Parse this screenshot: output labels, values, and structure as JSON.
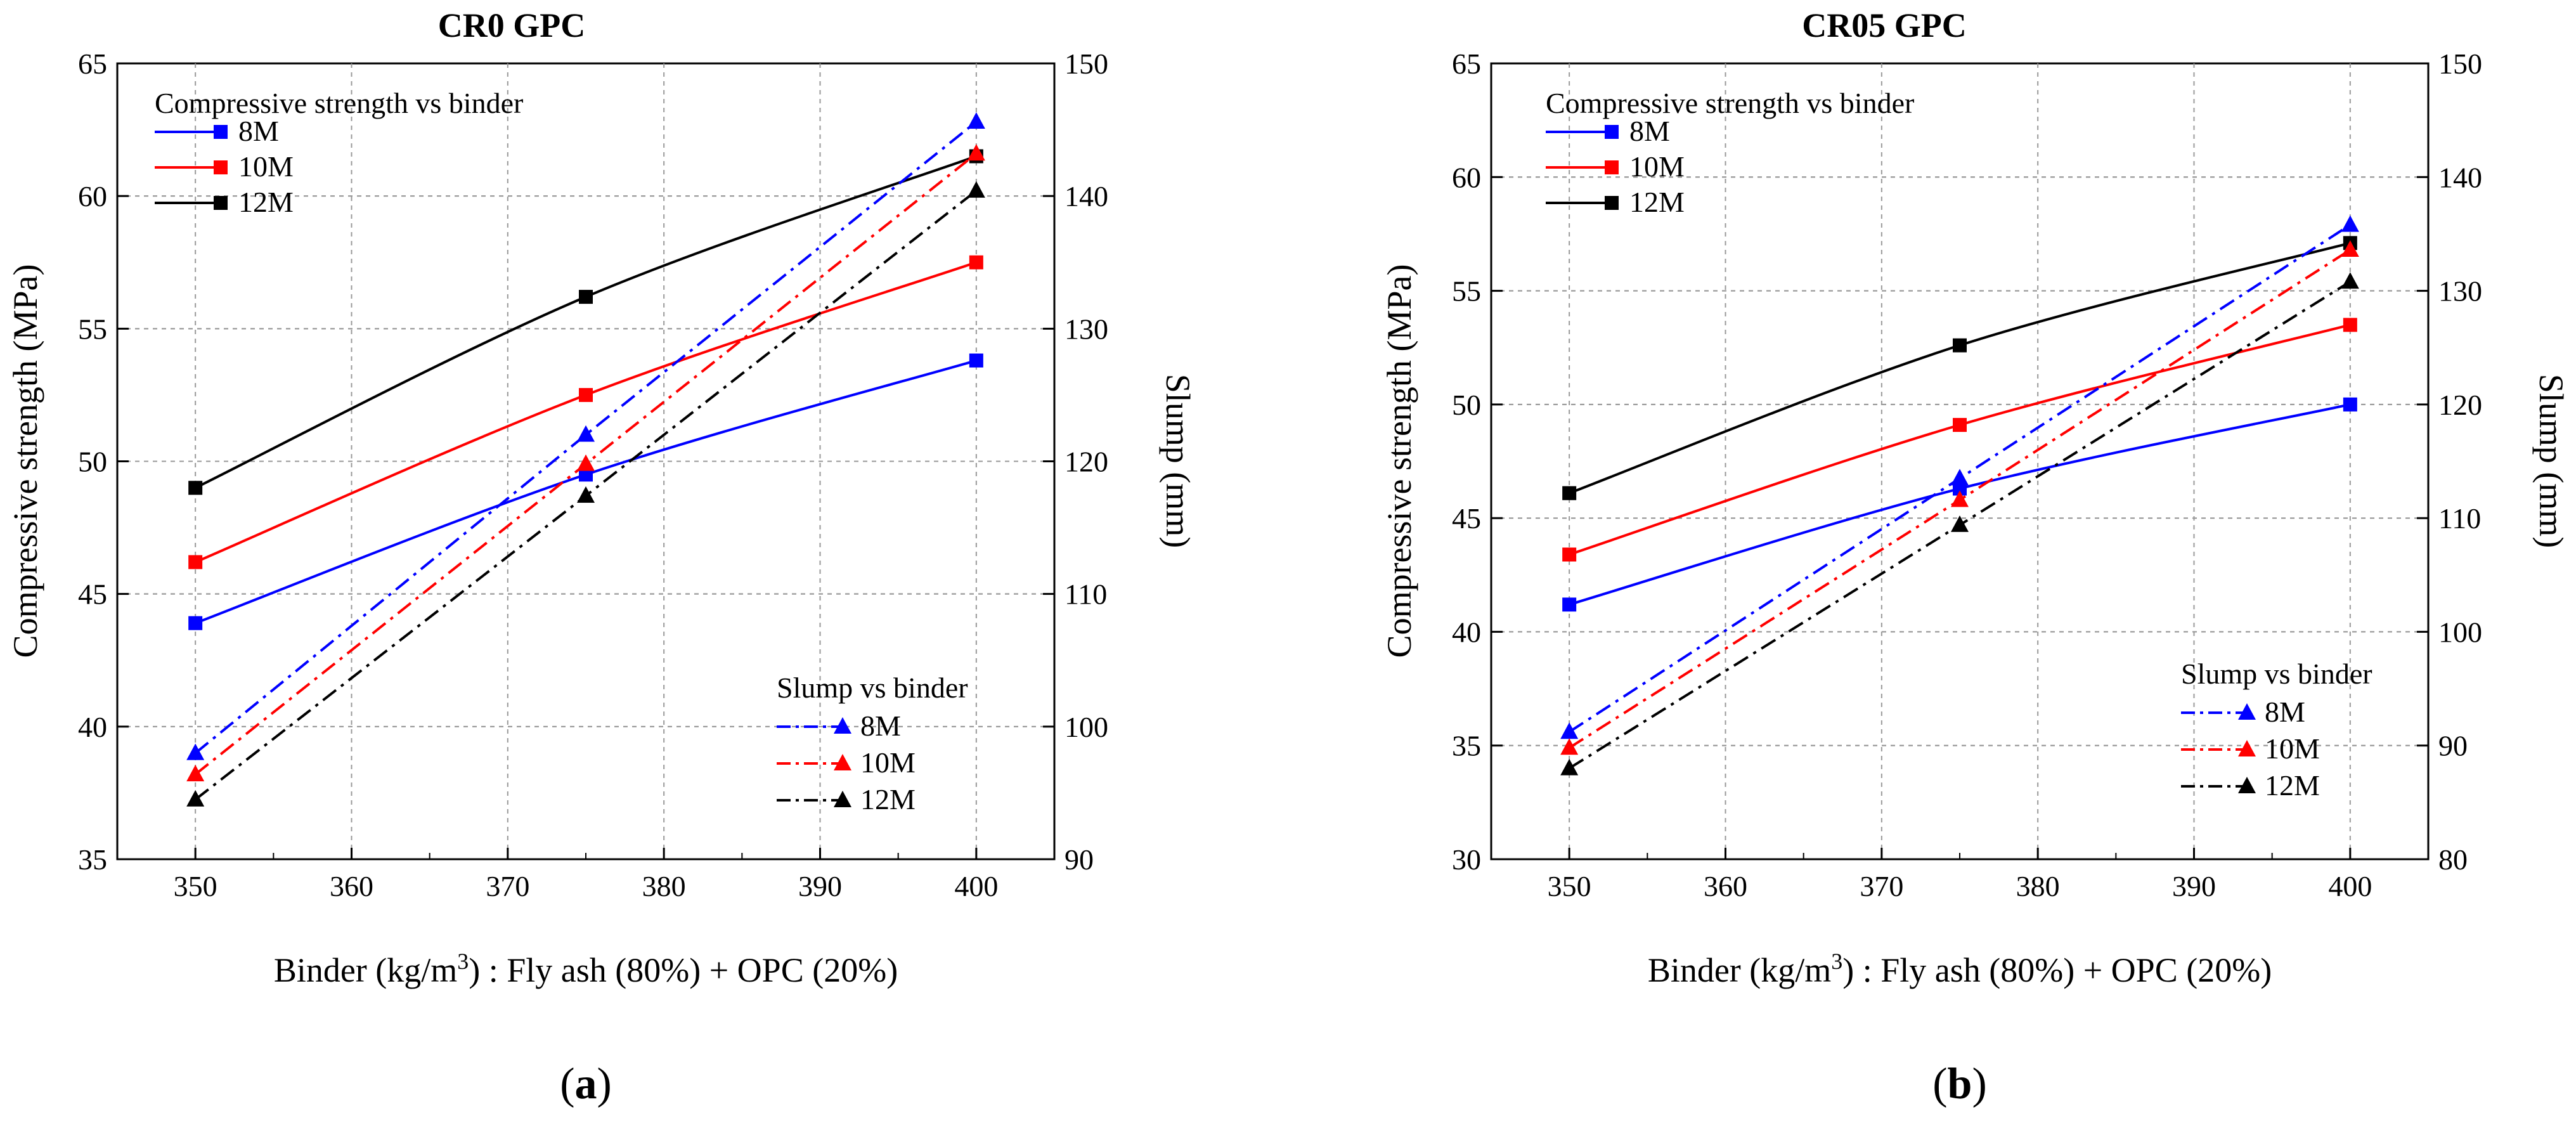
{
  "figure": {
    "panels": [
      {
        "id": "a",
        "caption": "(a)",
        "caption_letter": "a",
        "title": "CR0 GPC",
        "xlabel_prefix": "Binder (kg/m",
        "xlabel_sup": "3",
        "xlabel_suffix": ") : Fly ash (80%) + OPC (20%)",
        "ylabel_left": "Compressive strength (MPa)",
        "ylabel_right": "Slump (mm)",
        "legend_strength_title": "Compressive strength vs binder",
        "legend_slump_title": "Slump vs binder"
      },
      {
        "id": "b",
        "caption": "(b)",
        "caption_letter": "b",
        "title": "CR05 GPC",
        "xlabel_prefix": "Binder (kg/m",
        "xlabel_sup": "3",
        "xlabel_suffix": ") : Fly ash (80%) + OPC (20%)",
        "ylabel_left": "Compressive strength (MPa)",
        "ylabel_right": "Slump (mm)",
        "legend_strength_title": "Compressive strength vs binder",
        "legend_slump_title": "Slump vs binder"
      }
    ],
    "colors": {
      "8M": "#0000ff",
      "10M": "#ff0000",
      "12M": "#000000"
    }
  },
  "chart_data": [
    {
      "type": "line",
      "title": "CR0 GPC",
      "xlabel": "Binder (kg/m3) : Fly ash (80%) + OPC (20%)",
      "ylabel": "Compressive strength (MPa)",
      "y2label": "Slump (mm)",
      "x": [
        350,
        375,
        400
      ],
      "xlim": [
        345,
        405
      ],
      "xticks": [
        350,
        360,
        370,
        380,
        390,
        400
      ],
      "ylim": [
        35,
        65
      ],
      "yticks": [
        35,
        40,
        45,
        50,
        55,
        60,
        65
      ],
      "y2lim": [
        90,
        150
      ],
      "y2ticks": [
        90,
        100,
        110,
        120,
        130,
        140,
        150
      ],
      "grid": true,
      "series": [
        {
          "name": "8M",
          "group": "Compressive strength vs binder",
          "axis": "left",
          "marker": "square",
          "style": "solid",
          "color": "#0000ff",
          "values": [
            43.9,
            49.5,
            53.8
          ]
        },
        {
          "name": "10M",
          "group": "Compressive strength vs binder",
          "axis": "left",
          "marker": "square",
          "style": "solid",
          "color": "#ff0000",
          "values": [
            46.2,
            52.5,
            57.5
          ]
        },
        {
          "name": "12M",
          "group": "Compressive strength vs binder",
          "axis": "left",
          "marker": "square",
          "style": "solid",
          "color": "#000000",
          "values": [
            49.0,
            56.2,
            61.5
          ]
        },
        {
          "name": "8M",
          "group": "Slump vs binder",
          "axis": "right",
          "marker": "triangle",
          "style": "dashdot",
          "color": "#0000ff",
          "values": [
            98,
            122,
            145.6
          ]
        },
        {
          "name": "10M",
          "group": "Slump vs binder",
          "axis": "right",
          "marker": "triangle",
          "style": "dashdot",
          "color": "#ff0000",
          "values": [
            96.4,
            119.8,
            143.2
          ]
        },
        {
          "name": "12M",
          "group": "Slump vs binder",
          "axis": "right",
          "marker": "triangle",
          "style": "dashdot",
          "color": "#000000",
          "values": [
            94.5,
            117.4,
            140.4
          ]
        }
      ]
    },
    {
      "type": "line",
      "title": "CR05 GPC",
      "xlabel": "Binder (kg/m3) : Fly ash (80%) + OPC (20%)",
      "ylabel": "Compressive strength (MPa)",
      "y2label": "Slump (mm)",
      "x": [
        350,
        375,
        400
      ],
      "xlim": [
        345,
        405
      ],
      "xticks": [
        350,
        360,
        370,
        380,
        390,
        400
      ],
      "ylim": [
        30,
        65
      ],
      "yticks": [
        30,
        35,
        40,
        45,
        50,
        55,
        60,
        65
      ],
      "y2lim": [
        80,
        150
      ],
      "y2ticks": [
        80,
        90,
        100,
        110,
        120,
        130,
        140,
        150
      ],
      "grid": true,
      "series": [
        {
          "name": "8M",
          "group": "Compressive strength vs binder",
          "axis": "left",
          "marker": "square",
          "style": "solid",
          "color": "#0000ff",
          "values": [
            41.2,
            46.3,
            50.0
          ]
        },
        {
          "name": "10M",
          "group": "Compressive strength vs binder",
          "axis": "left",
          "marker": "square",
          "style": "solid",
          "color": "#ff0000",
          "values": [
            43.4,
            49.1,
            53.5
          ]
        },
        {
          "name": "12M",
          "group": "Compressive strength vs binder",
          "axis": "left",
          "marker": "square",
          "style": "solid",
          "color": "#000000",
          "values": [
            46.1,
            52.6,
            57.1
          ]
        },
        {
          "name": "8M",
          "group": "Slump vs binder",
          "axis": "right",
          "marker": "triangle",
          "style": "dashdot",
          "color": "#0000ff",
          "values": [
            91.2,
            113.5,
            135.8
          ]
        },
        {
          "name": "10M",
          "group": "Slump vs binder",
          "axis": "right",
          "marker": "triangle",
          "style": "dashdot",
          "color": "#ff0000",
          "values": [
            89.8,
            111.6,
            133.6
          ]
        },
        {
          "name": "12M",
          "group": "Slump vs binder",
          "axis": "right",
          "marker": "triangle",
          "style": "dashdot",
          "color": "#000000",
          "values": [
            88.0,
            109.4,
            130.8
          ]
        }
      ]
    }
  ]
}
